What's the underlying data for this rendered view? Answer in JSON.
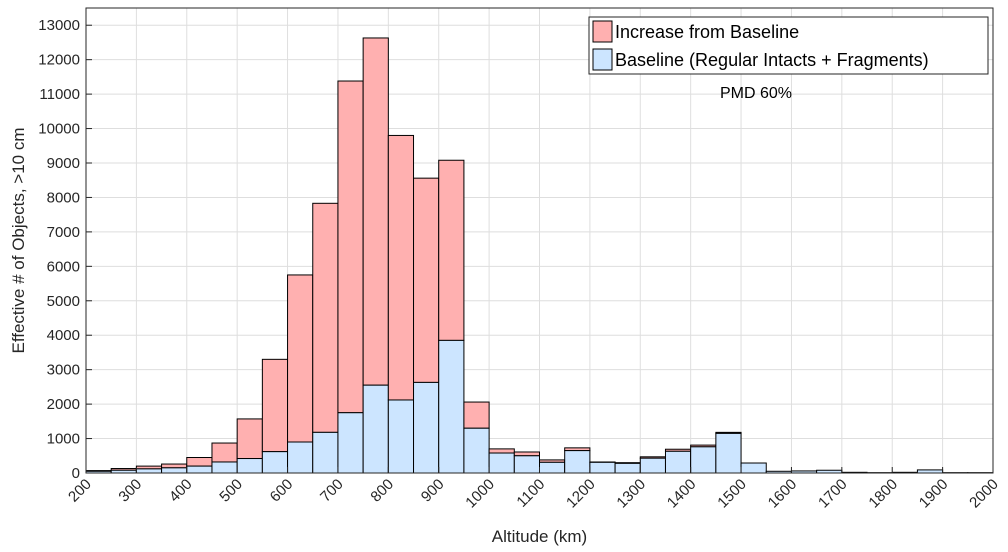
{
  "chart_data": {
    "type": "bar",
    "stacked": true,
    "bin_width": 50,
    "x": [
      200,
      250,
      300,
      350,
      400,
      450,
      500,
      550,
      600,
      650,
      700,
      750,
      800,
      850,
      900,
      950,
      1000,
      1050,
      1100,
      1150,
      1200,
      1250,
      1300,
      1350,
      1400,
      1450,
      1500,
      1550,
      1600,
      1650,
      1700,
      1750,
      1800,
      1850,
      1900,
      1950
    ],
    "series": [
      {
        "name": "Baseline (Regular Intacts + Fragments)",
        "color": "#cce5ff",
        "values": [
          50,
          80,
          120,
          150,
          200,
          320,
          420,
          620,
          900,
          1180,
          1750,
          2550,
          2120,
          2630,
          3850,
          1300,
          580,
          500,
          310,
          650,
          310,
          280,
          430,
          630,
          760,
          1150,
          290,
          50,
          60,
          80,
          20,
          10,
          20,
          90,
          10,
          10
        ]
      },
      {
        "name": "Increase from Baseline",
        "color": "#ffb0b0",
        "values": [
          20,
          50,
          80,
          110,
          250,
          550,
          1150,
          2680,
          4850,
          6650,
          9630,
          10080,
          7680,
          5930,
          5230,
          760,
          120,
          110,
          70,
          80,
          10,
          20,
          40,
          60,
          50,
          30,
          0,
          0,
          0,
          0,
          0,
          0,
          0,
          0,
          0,
          0
        ]
      }
    ],
    "xlabel": "Altitude (km)",
    "ylabel": "Effective # of Objects, >10 cm",
    "xlim": [
      200,
      2000
    ],
    "ylim": [
      0,
      13500
    ],
    "xticks": [
      200,
      300,
      400,
      500,
      600,
      700,
      800,
      900,
      1000,
      1100,
      1200,
      1300,
      1400,
      1500,
      1600,
      1700,
      1800,
      1900,
      2000
    ],
    "yticks": [
      0,
      1000,
      2000,
      3000,
      4000,
      5000,
      6000,
      7000,
      8000,
      9000,
      10000,
      11000,
      12000,
      13000
    ],
    "grid": true,
    "legend_position": "top-right",
    "annotation": "PMD 60%"
  }
}
